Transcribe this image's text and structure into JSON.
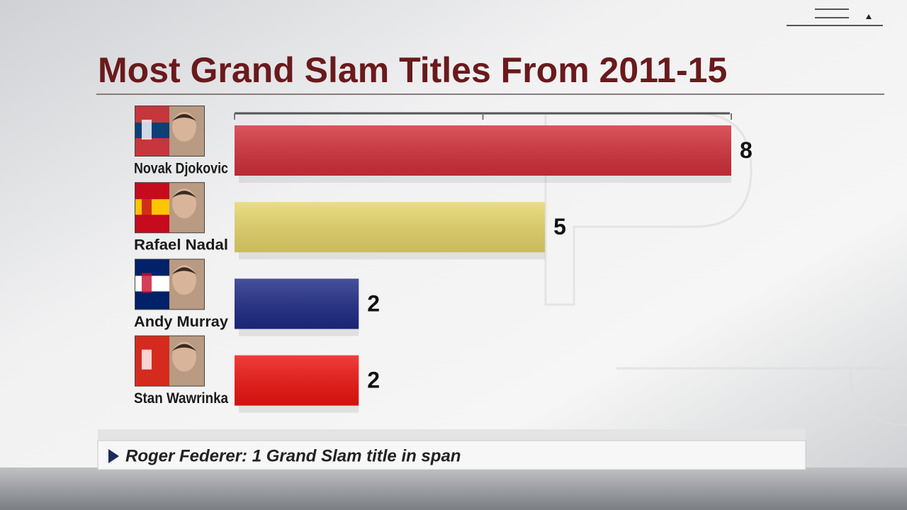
{
  "chart_data": {
    "type": "hbar",
    "title": "Most Grand Slam Titles From 2011-15",
    "categories": [
      "Novak Djokovic",
      "Rafael Nadal",
      "Andy Murray",
      "Stan Wawrinka"
    ],
    "series": [
      {
        "name": "Grand Slam titles",
        "values": [
          8,
          5,
          2,
          2
        ],
        "colors": [
          "#d3303a",
          "#e6d66a",
          "#1e2a85",
          "#ee1410"
        ]
      }
    ],
    "xlim": [
      0,
      8
    ],
    "xticks": [
      0,
      4,
      8
    ],
    "footnote": "Roger Federer: 1 Grand Slam title in span"
  }
}
